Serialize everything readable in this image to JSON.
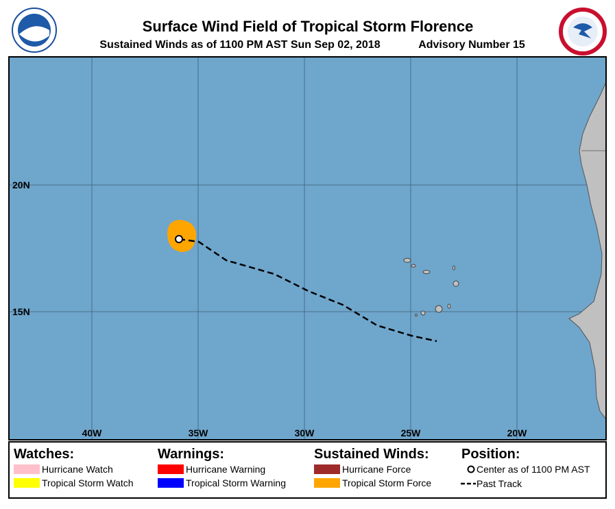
{
  "header": {
    "title": "Surface Wind Field of Tropical Storm Florence",
    "subtitle": "Sustained Winds as of 1100 PM AST Sun Sep 02, 2018",
    "advisory": "Advisory Number 15"
  },
  "map": {
    "latitudes": [
      {
        "value": 20,
        "label": "20N"
      },
      {
        "value": 15,
        "label": "15N"
      }
    ],
    "longitudes": [
      {
        "value": 40,
        "label": "40W"
      },
      {
        "value": 35,
        "label": "35W"
      },
      {
        "value": 30,
        "label": "30W"
      },
      {
        "value": 25,
        "label": "25W"
      },
      {
        "value": 20,
        "label": "20W"
      }
    ]
  },
  "legend": {
    "watches": {
      "title": "Watches:",
      "items": [
        {
          "label": "Hurricane Watch",
          "color": "#ffc0cb"
        },
        {
          "label": "Tropical Storm Watch",
          "color": "#ffff00"
        }
      ]
    },
    "warnings": {
      "title": "Warnings:",
      "items": [
        {
          "label": "Hurricane Warning",
          "color": "#ff0000"
        },
        {
          "label": "Tropical Storm Warning",
          "color": "#0000ff"
        }
      ]
    },
    "winds": {
      "title": "Sustained Winds:",
      "items": [
        {
          "label": "Hurricane Force",
          "color": "#9e2a2a"
        },
        {
          "label": "Tropical Storm Force",
          "color": "#ffa500"
        }
      ]
    },
    "position": {
      "title": "Position:",
      "center": "Center as of 1100 PM AST",
      "track": "Past Track"
    }
  }
}
